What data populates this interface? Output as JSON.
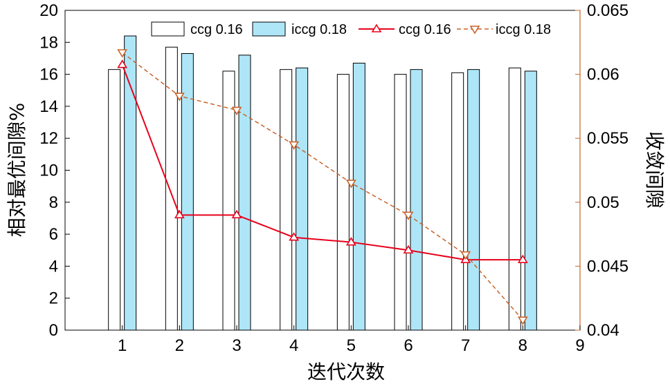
{
  "chart_data": {
    "type": "bar",
    "xlabel": "迭代次数",
    "ylabel": "相对最优间隙%",
    "y2label": "收敛间隙",
    "x_ticks": [
      1,
      2,
      3,
      4,
      5,
      6,
      7,
      8,
      9
    ],
    "xlim": [
      0,
      9
    ],
    "ylim": [
      0,
      20
    ],
    "y_ticks": [
      0,
      2,
      4,
      6,
      8,
      10,
      12,
      14,
      16,
      18,
      20
    ],
    "y2lim": [
      0.04,
      0.065
    ],
    "y2_ticks": [
      "0.04",
      "0.045",
      "0.05",
      "0.055",
      "0.06",
      "0.065"
    ],
    "grid": false,
    "legend_position": "top",
    "bar_series": [
      {
        "name": "ccg 0.16",
        "color": "#ffffff",
        "x": [
          1,
          2,
          3,
          4,
          5,
          6,
          7,
          8
        ],
        "values": [
          16.3,
          17.7,
          16.2,
          16.3,
          16.0,
          16.0,
          16.1,
          16.4
        ]
      },
      {
        "name": "iccg 0.18",
        "color": "#aee6f8",
        "x": [
          1,
          2,
          3,
          4,
          5,
          6,
          7,
          8
        ],
        "values": [
          18.4,
          17.3,
          17.2,
          16.4,
          16.7,
          16.3,
          16.3,
          16.2
        ]
      }
    ],
    "line_series": [
      {
        "name": "ccg 0.16",
        "color": "#e8001a",
        "marker": "triangle-up",
        "dash": "solid",
        "axis": "left",
        "x": [
          1,
          2,
          3,
          4,
          5,
          6,
          7,
          8
        ],
        "values": [
          16.6,
          7.2,
          7.2,
          5.8,
          5.5,
          5.0,
          4.4,
          4.4
        ]
      },
      {
        "name": "iccg 0.18",
        "color": "#c8642a",
        "marker": "triangle-down",
        "dash": "dashed",
        "axis": "right",
        "x": [
          1,
          2,
          3,
          4,
          5,
          6,
          7,
          8
        ],
        "values": [
          0.0617,
          0.0583,
          0.0572,
          0.0545,
          0.0515,
          0.049,
          0.0459,
          0.0408
        ]
      }
    ]
  }
}
